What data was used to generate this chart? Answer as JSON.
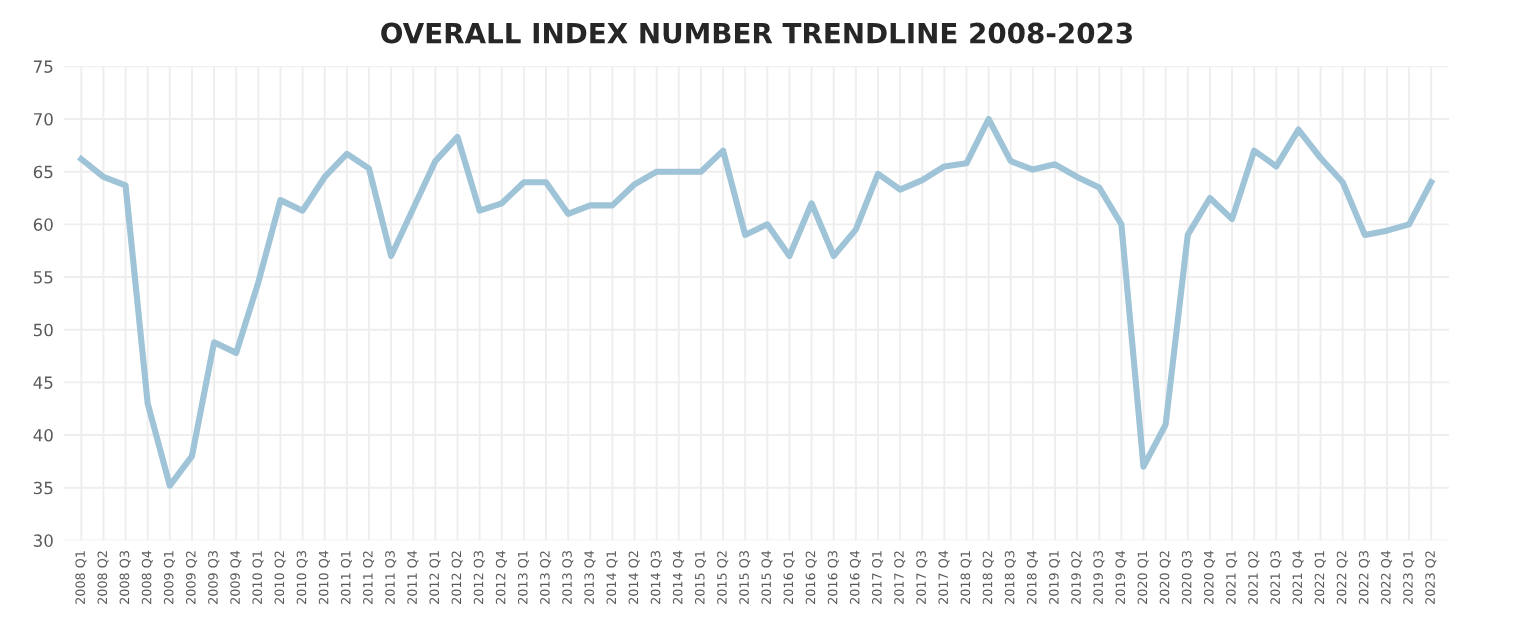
{
  "chart_data": {
    "type": "line",
    "title": "OVERALL INDEX NUMBER TRENDLINE 2008-2023",
    "categories": [
      "2008 Q1",
      "2008 Q2",
      "2008 Q3",
      "2008 Q4",
      "2009 Q1",
      "2009 Q2",
      "2009 Q3",
      "2009 Q4",
      "2010 Q1",
      "2010 Q2",
      "2010 Q3",
      "2010 Q4",
      "2011 Q1",
      "2011 Q2",
      "2011 Q3",
      "2011 Q4",
      "2012 Q1",
      "2012 Q2",
      "2012 Q3",
      "2012 Q4",
      "2013 Q1",
      "2013 Q2",
      "2013 Q3",
      "2013 Q4",
      "2014 Q1",
      "2014 Q2",
      "2014 Q3",
      "2014 Q4",
      "2015 Q1",
      "2015 Q2",
      "2015 Q3",
      "2015 Q4",
      "2016 Q1",
      "2016 Q2",
      "2016 Q3",
      "2016 Q4",
      "2017 Q1",
      "2017 Q2",
      "2017 Q3",
      "2017 Q4",
      "2018 Q1",
      "2018 Q2",
      "2018 Q3",
      "2018 Q4",
      "2019 Q1",
      "2019 Q2",
      "2019 Q3",
      "2019 Q4",
      "2020 Q1",
      "2020 Q2",
      "2020 Q3",
      "2020 Q4",
      "2021 Q1",
      "2021 Q2",
      "2021 Q3",
      "2021 Q4",
      "2022 Q1",
      "2022 Q2",
      "2022 Q3",
      "2022 Q4",
      "2023 Q1",
      "2023 Q2"
    ],
    "series": [
      {
        "color": "#9fc4d8",
        "values": [
          66.2,
          64.5,
          63.7,
          43,
          35.2,
          38,
          48.8,
          47.8,
          54.5,
          62.3,
          61.3,
          64.5,
          66.7,
          65.3,
          57,
          61.5,
          66,
          68.3,
          61.3,
          62,
          64,
          64,
          61,
          61.8,
          61.8,
          63.8,
          65,
          65,
          65,
          67,
          59,
          60,
          57,
          62,
          57,
          59.5,
          64.8,
          63.3,
          64.2,
          65.5,
          65.8,
          70,
          66,
          65.2,
          65.7,
          64.5,
          63.5,
          60,
          37,
          41,
          59,
          62.5,
          60.5,
          67,
          65.5,
          69,
          66.3,
          64,
          59,
          59.4,
          60,
          64
        ]
      }
    ],
    "ylim": [
      30,
      75
    ],
    "yticks": [
      30,
      35,
      40,
      45,
      50,
      55,
      60,
      65,
      70,
      75
    ],
    "grid": true,
    "line_style": "solid",
    "marker": "none"
  }
}
